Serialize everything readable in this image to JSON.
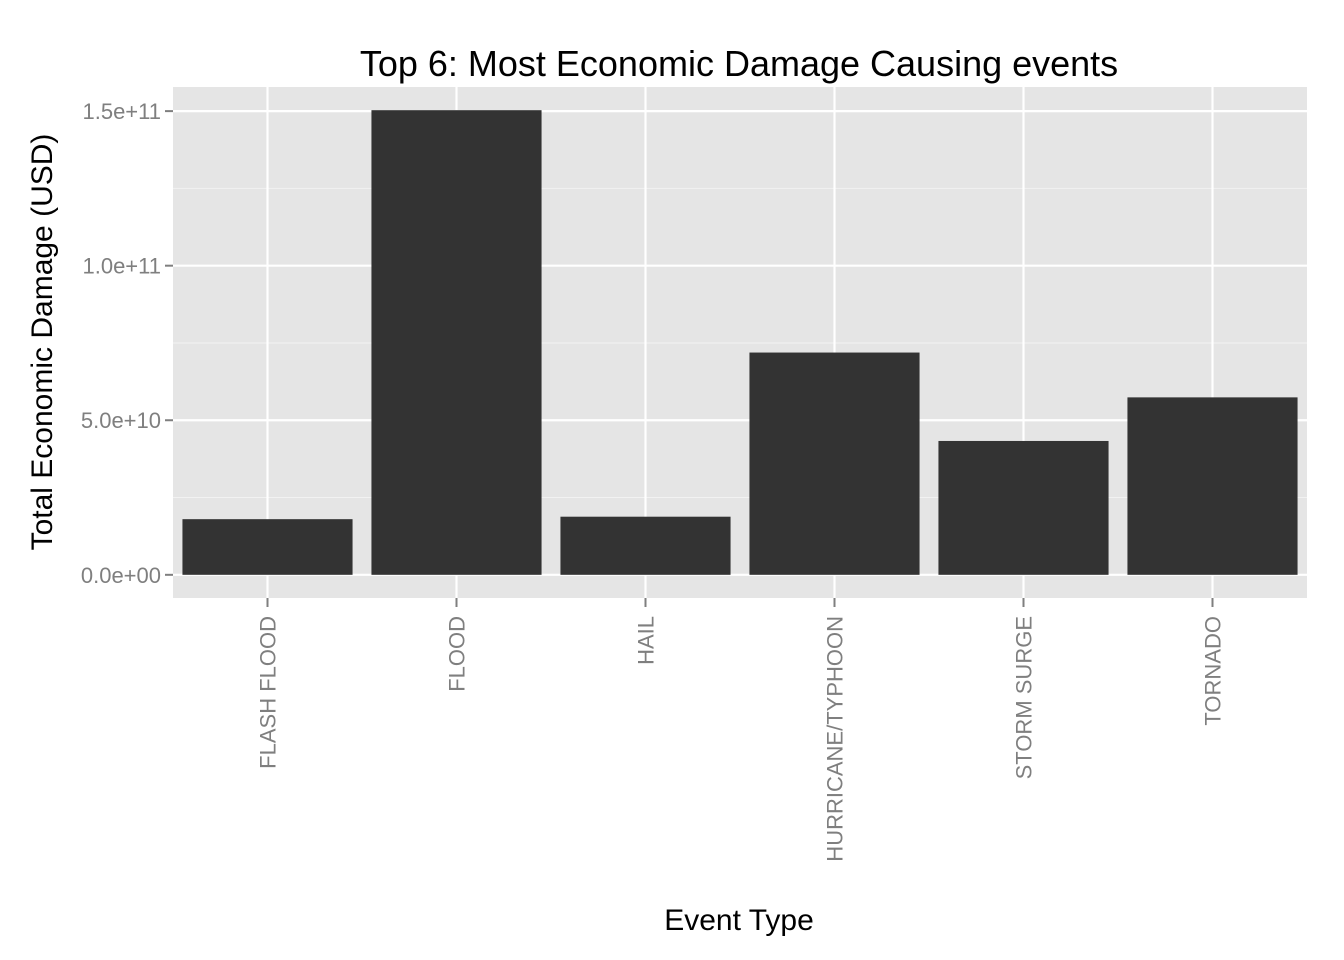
{
  "colors": {
    "panel": "#e5e5e5",
    "grid_major": "#ffffff",
    "grid_minor": "#f2f2f2",
    "bar": "#333333",
    "tick": "#7f7f7f"
  },
  "chart_data": {
    "type": "bar",
    "title": "Top 6: Most Economic Damage Causing events",
    "xlabel": "Event Type",
    "ylabel": "Total Economic Damage (USD)",
    "categories": [
      "FLASH FLOOD",
      "FLOOD",
      "HAIL",
      "HURRICANE/TYPHOON",
      "STORM SURGE",
      "TORNADO"
    ],
    "values": [
      18000000000,
      150300000000,
      18800000000,
      71900000000,
      43300000000,
      57400000000
    ],
    "yticks": [
      0,
      50000000000,
      100000000000,
      150000000000
    ],
    "ytick_labels": [
      "0.0e+00",
      "5.0e+10",
      "1.0e+11",
      "1.5e+11"
    ],
    "ylim": [
      -7500000000,
      157800000000
    ],
    "grid": true,
    "legend": "none"
  }
}
